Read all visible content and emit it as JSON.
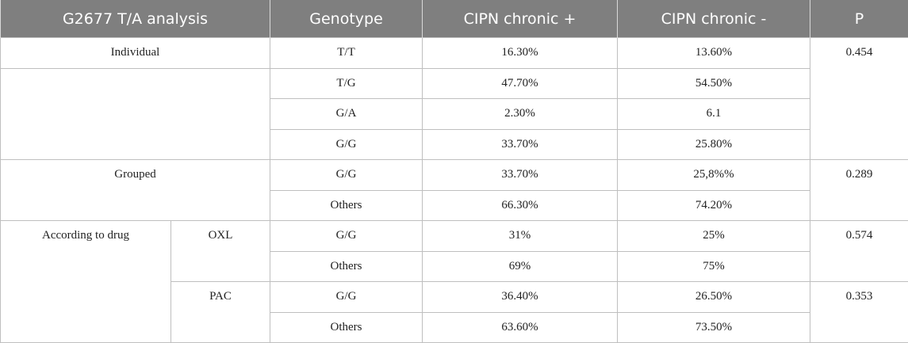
{
  "table": {
    "headers": {
      "analysis": "G2677 T/A analysis",
      "genotype": "Genotype",
      "cipn_plus": "CIPN chronic +",
      "cipn_minus": "CIPN chronic -",
      "p": "P"
    },
    "groups": {
      "individual": "Individual",
      "grouped": "Grouped",
      "according_to_drug": "According to drug",
      "oxl": "OXL",
      "pac": "PAC"
    },
    "rows": [
      {
        "genotype": "T/T",
        "plus": "16.30%",
        "minus": "13.60%",
        "p": "0.454"
      },
      {
        "genotype": "T/G",
        "plus": "47.70%",
        "minus": "54.50%"
      },
      {
        "genotype": "G/A",
        "plus": "2.30%",
        "minus": "6.1"
      },
      {
        "genotype": "G/G",
        "plus": "33.70%",
        "minus": "25.80%"
      },
      {
        "genotype": "G/G",
        "plus": "33.70%",
        "minus": "25,8%%",
        "p": "0.289"
      },
      {
        "genotype": "Others",
        "plus": "66.30%",
        "minus": "74.20%"
      },
      {
        "genotype": "G/G",
        "plus": "31%",
        "minus": "25%",
        "p": "0.574"
      },
      {
        "genotype": "Others",
        "plus": "69%",
        "minus": "75%"
      },
      {
        "genotype": "G/G",
        "plus": "36.40%",
        "minus": "26.50%",
        "p": "0.353"
      },
      {
        "genotype": "Others",
        "plus": "63.60%",
        "minus": "73.50%"
      }
    ]
  }
}
